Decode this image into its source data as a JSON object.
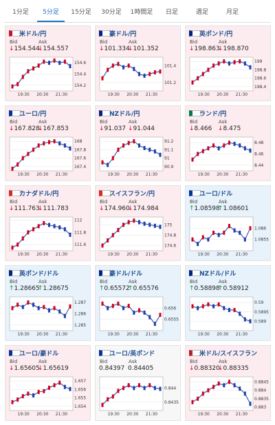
{
  "tabs": [
    "1分足",
    "5分足",
    "15分足",
    "30分足",
    "1時間足",
    "日足",
    "週足",
    "月足"
  ],
  "active_tab": 1,
  "labels": {
    "bid": "Bid",
    "ask": "Ask"
  },
  "panels": [
    {
      "pair": "米ドル/円",
      "direction": "down",
      "bid": "154.544",
      "ask": "154.557",
      "chart": {
        "ylim": [
          154.1,
          154.7
        ],
        "yticks": [
          154.6,
          154.4,
          154.2
        ],
        "xticks": [
          "19:30",
          "20:30",
          "21:30"
        ],
        "closes": [
          154.18,
          154.22,
          154.35,
          154.45,
          154.5,
          154.55,
          154.62,
          154.6,
          154.64,
          154.6,
          154.62,
          154.54
        ]
      }
    },
    {
      "pair": "豪ドル/円",
      "direction": "down",
      "bid": "101.334",
      "ask": "101.352",
      "chart": {
        "ylim": [
          101.1,
          101.5
        ],
        "yticks": [
          101.4,
          101.2
        ],
        "xticks": [
          "19:30",
          "20:30",
          "21:30"
        ],
        "closes": [
          101.25,
          101.35,
          101.4,
          101.42,
          101.38,
          101.4,
          101.36,
          101.3,
          101.28,
          101.3,
          101.32,
          101.33
        ]
      }
    },
    {
      "pair": "英ポンド/円",
      "direction": "down",
      "bid": "198.863",
      "ask": "198.870",
      "chart": {
        "ylim": [
          198.3,
          199.1
        ],
        "yticks": [
          199,
          198.8,
          198.6,
          198.4
        ],
        "xticks": [
          "19:30",
          "20:30",
          "21:30"
        ],
        "closes": [
          198.5,
          198.6,
          198.7,
          198.8,
          198.9,
          198.95,
          199,
          198.95,
          198.98,
          199,
          198.95,
          198.86
        ]
      }
    },
    {
      "pair": "ユーロ/円",
      "direction": "down",
      "bid": "167.828",
      "ask": "167.853",
      "chart": {
        "ylim": [
          167.3,
          168.1
        ],
        "yticks": [
          168,
          167.8,
          167.6,
          167.4
        ],
        "xticks": [
          "19:30",
          "20:30",
          "21:30"
        ],
        "closes": [
          167.35,
          167.45,
          167.6,
          167.7,
          167.8,
          167.9,
          167.95,
          167.98,
          168,
          167.95,
          167.9,
          167.83
        ]
      }
    },
    {
      "pair": "NZドル/円",
      "direction": "down",
      "bid": "91.037",
      "ask": "91.044",
      "chart": {
        "ylim": [
          90.85,
          91.25
        ],
        "yticks": [
          91.2,
          91.1,
          91,
          90.9
        ],
        "xticks": [
          "19:30",
          "20:30",
          "21:30"
        ],
        "closes": [
          90.95,
          90.92,
          91,
          91.1,
          91.15,
          91.18,
          91.2,
          91.15,
          91.12,
          91.1,
          91.08,
          91.04
        ]
      }
    },
    {
      "pair": "ランド/円",
      "direction": "down",
      "bid": "8.466",
      "ask": "8.475",
      "chart": {
        "ylim": [
          8.43,
          8.49
        ],
        "yticks": [
          8.48,
          8.46,
          8.44
        ],
        "xticks": [
          "19:30",
          "20:30",
          "21:30"
        ],
        "closes": [
          8.45,
          8.46,
          8.465,
          8.47,
          8.475,
          8.47,
          8.475,
          8.48,
          8.478,
          8.475,
          8.47,
          8.466
        ]
      }
    },
    {
      "pair": "カナダドル/円",
      "direction": "down",
      "bid": "111.763",
      "ask": "111.783",
      "chart": {
        "ylim": [
          111.5,
          112.05
        ],
        "yticks": [
          112,
          111.8,
          111.6
        ],
        "xticks": [
          "19:30",
          "20:30",
          "21:30"
        ],
        "closes": [
          111.55,
          111.6,
          111.7,
          111.8,
          111.85,
          111.9,
          111.95,
          111.92,
          111.9,
          111.88,
          111.85,
          111.76
        ]
      }
    },
    {
      "pair": "スイスフラン/円",
      "direction": "down",
      "bid": "174.960",
      "ask": "174.984",
      "chart": {
        "ylim": [
          174.5,
          175.15
        ],
        "yticks": [
          175,
          174.8,
          174.6
        ],
        "xticks": [
          "19:30",
          "20:30",
          "21:30"
        ],
        "closes": [
          174.6,
          174.7,
          174.8,
          174.9,
          175,
          175.05,
          175.08,
          175.05,
          175.02,
          175,
          174.98,
          174.96
        ]
      }
    },
    {
      "pair": "ユーロ/ドル",
      "direction": "up",
      "bid": "1.08598",
      "ask": "1.08601",
      "chart": {
        "ylim": [
          1.085,
          1.0865
        ],
        "yticks": [
          1.086,
          1.0855
        ],
        "xticks": [
          "19:30",
          "20:30",
          "21:30"
        ],
        "closes": [
          1.0855,
          1.0853,
          1.0856,
          1.0855,
          1.0858,
          1.0857,
          1.0858,
          1.0861,
          1.0859,
          1.0858,
          1.0855,
          1.086
        ]
      }
    },
    {
      "pair": "英ポンド/ドル",
      "direction": "up",
      "bid": "1.28665",
      "ask": "1.28675",
      "chart": {
        "ylim": [
          1.2845,
          1.2875
        ],
        "yticks": [
          1.287,
          1.286,
          1.285
        ],
        "xticks": [
          "19:30",
          "20:30",
          "21:30"
        ],
        "closes": [
          1.2865,
          1.2868,
          1.2866,
          1.287,
          1.2868,
          1.2865,
          1.2866,
          1.2863,
          1.2865,
          1.2862,
          1.2858,
          1.28665
        ]
      }
    },
    {
      "pair": "豪ドル/ドル",
      "direction": "up",
      "bid": "0.65572",
      "ask": "0.65576",
      "chart": {
        "ylim": [
          0.655,
          0.6565
        ],
        "yticks": [
          0.656,
          0.6555
        ],
        "xticks": [
          "19:30",
          "20:30",
          "21:30"
        ],
        "closes": [
          0.6562,
          0.656,
          0.6561,
          0.6562,
          0.656,
          0.6561,
          0.6558,
          0.6559,
          0.6558,
          0.6556,
          0.6553,
          0.6557
        ]
      }
    },
    {
      "pair": "NZドル/ドル",
      "direction": "up",
      "bid": "0.58898",
      "ask": "0.58912",
      "chart": {
        "ylim": [
          0.5885,
          0.5903
        ],
        "yticks": [
          0.59,
          0.5895,
          0.589
        ],
        "xticks": [
          "19:30",
          "20:30",
          "21:30"
        ],
        "closes": [
          0.5898,
          0.5897,
          0.5898,
          0.5899,
          0.5898,
          0.5899,
          0.5897,
          0.5896,
          0.5896,
          0.5894,
          0.5891,
          0.589
        ]
      }
    },
    {
      "pair": "ユーロ/豪ドル",
      "direction": "down",
      "bid": "1.65605",
      "ask": "1.65619",
      "chart": {
        "ylim": [
          1.6535,
          1.6575
        ],
        "yticks": [
          1.657,
          1.656,
          1.655,
          1.654
        ],
        "xticks": [
          "19:30",
          "20:30",
          "21:30"
        ],
        "closes": [
          1.6545,
          1.6548,
          1.6552,
          1.6555,
          1.6553,
          1.6557,
          1.6558,
          1.6562,
          1.6565,
          1.6568,
          1.6563,
          1.65605
        ]
      }
    },
    {
      "pair": "ユーロ/英ポンド",
      "direction": "none",
      "bid": "0.84397",
      "ask": "0.84405",
      "chart": {
        "ylim": [
          0.8432,
          0.8444
        ],
        "yticks": [
          0.844,
          0.8435
        ],
        "xticks": [
          "19:30",
          "20:30",
          "21:30"
        ],
        "closes": [
          0.8434,
          0.8436,
          0.8437,
          0.8439,
          0.844,
          0.8441,
          0.844,
          0.8441,
          0.844,
          0.8441,
          0.844,
          0.84397
        ]
      }
    },
    {
      "pair": "米ドル/スイスフラン",
      "direction": "down",
      "bid": "0.88320",
      "ask": "0.88335",
      "chart": {
        "ylim": [
          0.8828,
          0.8848
        ],
        "yticks": [
          0.8845,
          0.884,
          0.8835,
          0.883
        ],
        "xticks": [
          "19:30",
          "20:30",
          "21:30"
        ],
        "closes": [
          0.8833,
          0.8835,
          0.8838,
          0.884,
          0.8842,
          0.8844,
          0.8843,
          0.8845,
          0.8843,
          0.8841,
          0.8838,
          0.8832
        ]
      }
    }
  ]
}
